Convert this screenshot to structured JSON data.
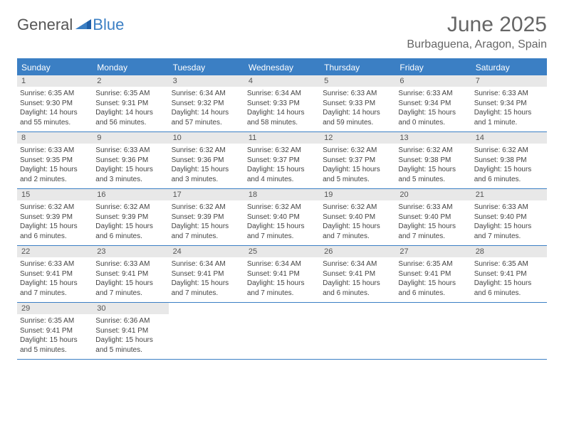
{
  "brand": {
    "word1": "General",
    "word2": "Blue"
  },
  "title": "June 2025",
  "location": "Burbaguena, Aragon, Spain",
  "colors": {
    "accent": "#3b7fc4",
    "header_bg": "#3b7fc4",
    "daynum_bg": "#e8e8e8",
    "text": "#444444",
    "title_text": "#666666"
  },
  "weekdays": [
    "Sunday",
    "Monday",
    "Tuesday",
    "Wednesday",
    "Thursday",
    "Friday",
    "Saturday"
  ],
  "labels": {
    "sunrise": "Sunrise:",
    "sunset": "Sunset:",
    "daylight": "Daylight:"
  },
  "days": [
    {
      "n": 1,
      "sunrise": "6:35 AM",
      "sunset": "9:30 PM",
      "daylight": "14 hours and 55 minutes."
    },
    {
      "n": 2,
      "sunrise": "6:35 AM",
      "sunset": "9:31 PM",
      "daylight": "14 hours and 56 minutes."
    },
    {
      "n": 3,
      "sunrise": "6:34 AM",
      "sunset": "9:32 PM",
      "daylight": "14 hours and 57 minutes."
    },
    {
      "n": 4,
      "sunrise": "6:34 AM",
      "sunset": "9:33 PM",
      "daylight": "14 hours and 58 minutes."
    },
    {
      "n": 5,
      "sunrise": "6:33 AM",
      "sunset": "9:33 PM",
      "daylight": "14 hours and 59 minutes."
    },
    {
      "n": 6,
      "sunrise": "6:33 AM",
      "sunset": "9:34 PM",
      "daylight": "15 hours and 0 minutes."
    },
    {
      "n": 7,
      "sunrise": "6:33 AM",
      "sunset": "9:34 PM",
      "daylight": "15 hours and 1 minute."
    },
    {
      "n": 8,
      "sunrise": "6:33 AM",
      "sunset": "9:35 PM",
      "daylight": "15 hours and 2 minutes."
    },
    {
      "n": 9,
      "sunrise": "6:33 AM",
      "sunset": "9:36 PM",
      "daylight": "15 hours and 3 minutes."
    },
    {
      "n": 10,
      "sunrise": "6:32 AM",
      "sunset": "9:36 PM",
      "daylight": "15 hours and 3 minutes."
    },
    {
      "n": 11,
      "sunrise": "6:32 AM",
      "sunset": "9:37 PM",
      "daylight": "15 hours and 4 minutes."
    },
    {
      "n": 12,
      "sunrise": "6:32 AM",
      "sunset": "9:37 PM",
      "daylight": "15 hours and 5 minutes."
    },
    {
      "n": 13,
      "sunrise": "6:32 AM",
      "sunset": "9:38 PM",
      "daylight": "15 hours and 5 minutes."
    },
    {
      "n": 14,
      "sunrise": "6:32 AM",
      "sunset": "9:38 PM",
      "daylight": "15 hours and 6 minutes."
    },
    {
      "n": 15,
      "sunrise": "6:32 AM",
      "sunset": "9:39 PM",
      "daylight": "15 hours and 6 minutes."
    },
    {
      "n": 16,
      "sunrise": "6:32 AM",
      "sunset": "9:39 PM",
      "daylight": "15 hours and 6 minutes."
    },
    {
      "n": 17,
      "sunrise": "6:32 AM",
      "sunset": "9:39 PM",
      "daylight": "15 hours and 7 minutes."
    },
    {
      "n": 18,
      "sunrise": "6:32 AM",
      "sunset": "9:40 PM",
      "daylight": "15 hours and 7 minutes."
    },
    {
      "n": 19,
      "sunrise": "6:32 AM",
      "sunset": "9:40 PM",
      "daylight": "15 hours and 7 minutes."
    },
    {
      "n": 20,
      "sunrise": "6:33 AM",
      "sunset": "9:40 PM",
      "daylight": "15 hours and 7 minutes."
    },
    {
      "n": 21,
      "sunrise": "6:33 AM",
      "sunset": "9:40 PM",
      "daylight": "15 hours and 7 minutes."
    },
    {
      "n": 22,
      "sunrise": "6:33 AM",
      "sunset": "9:41 PM",
      "daylight": "15 hours and 7 minutes."
    },
    {
      "n": 23,
      "sunrise": "6:33 AM",
      "sunset": "9:41 PM",
      "daylight": "15 hours and 7 minutes."
    },
    {
      "n": 24,
      "sunrise": "6:34 AM",
      "sunset": "9:41 PM",
      "daylight": "15 hours and 7 minutes."
    },
    {
      "n": 25,
      "sunrise": "6:34 AM",
      "sunset": "9:41 PM",
      "daylight": "15 hours and 7 minutes."
    },
    {
      "n": 26,
      "sunrise": "6:34 AM",
      "sunset": "9:41 PM",
      "daylight": "15 hours and 6 minutes."
    },
    {
      "n": 27,
      "sunrise": "6:35 AM",
      "sunset": "9:41 PM",
      "daylight": "15 hours and 6 minutes."
    },
    {
      "n": 28,
      "sunrise": "6:35 AM",
      "sunset": "9:41 PM",
      "daylight": "15 hours and 6 minutes."
    },
    {
      "n": 29,
      "sunrise": "6:35 AM",
      "sunset": "9:41 PM",
      "daylight": "15 hours and 5 minutes."
    },
    {
      "n": 30,
      "sunrise": "6:36 AM",
      "sunset": "9:41 PM",
      "daylight": "15 hours and 5 minutes."
    }
  ],
  "layout": {
    "start_weekday": 0,
    "total_cells": 35
  }
}
